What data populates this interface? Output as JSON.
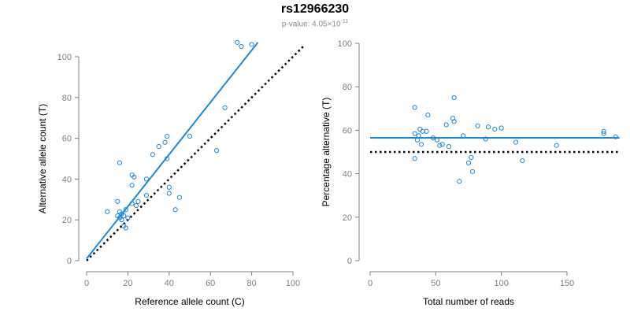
{
  "header": {
    "title": "rs12966230",
    "subtitle_prefix": "p-value: 4.05×10",
    "subtitle_exponent": "-11"
  },
  "colors": {
    "points": "#1f88d6",
    "fit_line": "#1f88d6",
    "reference_line": "#000000",
    "axis": "#7f7f7f",
    "tick_text": "#7f7f7f",
    "label_text": "#000000"
  },
  "chart_data": [
    {
      "type": "scatter",
      "title": "",
      "xlabel": "Reference allele count (C)",
      "ylabel": "Alternative allele count (T)",
      "xlim": [
        0,
        100
      ],
      "ylim": [
        0,
        100
      ],
      "x_ticks": [
        0,
        20,
        40,
        60,
        80,
        100
      ],
      "y_ticks": [
        0,
        20,
        40,
        60,
        80,
        100
      ],
      "grid": false,
      "points": [
        {
          "x": 73,
          "y": 107
        },
        {
          "x": 75,
          "y": 105
        },
        {
          "x": 80,
          "y": 106
        },
        {
          "x": 67,
          "y": 75
        },
        {
          "x": 39,
          "y": 61
        },
        {
          "x": 50,
          "y": 61
        },
        {
          "x": 38,
          "y": 58
        },
        {
          "x": 35,
          "y": 56
        },
        {
          "x": 32,
          "y": 52
        },
        {
          "x": 63,
          "y": 54
        },
        {
          "x": 39,
          "y": 50
        },
        {
          "x": 16,
          "y": 48
        },
        {
          "x": 22,
          "y": 42
        },
        {
          "x": 23,
          "y": 41
        },
        {
          "x": 29,
          "y": 40
        },
        {
          "x": 22,
          "y": 37
        },
        {
          "x": 40,
          "y": 36
        },
        {
          "x": 40,
          "y": 33
        },
        {
          "x": 29,
          "y": 32
        },
        {
          "x": 45,
          "y": 31
        },
        {
          "x": 15,
          "y": 29
        },
        {
          "x": 25,
          "y": 29
        },
        {
          "x": 22,
          "y": 28
        },
        {
          "x": 24,
          "y": 27
        },
        {
          "x": 10,
          "y": 24
        },
        {
          "x": 16,
          "y": 24
        },
        {
          "x": 19,
          "y": 25
        },
        {
          "x": 17,
          "y": 23
        },
        {
          "x": 15,
          "y": 22
        },
        {
          "x": 18,
          "y": 22
        },
        {
          "x": 43,
          "y": 25
        },
        {
          "x": 16,
          "y": 21
        },
        {
          "x": 20,
          "y": 21
        },
        {
          "x": 17,
          "y": 20
        },
        {
          "x": 18,
          "y": 17
        },
        {
          "x": 19,
          "y": 16
        }
      ],
      "fit_line": {
        "x": [
          0,
          83
        ],
        "y": [
          1,
          107
        ]
      },
      "reference_line": {
        "x": [
          0,
          105
        ],
        "y": [
          0,
          105
        ]
      }
    },
    {
      "type": "scatter",
      "title": "",
      "xlabel": "Total number of reads",
      "ylabel": "Percentage alternative (T)",
      "xlim": [
        0,
        180
      ],
      "ylim": [
        0,
        100
      ],
      "x_ticks": [
        0,
        50,
        100,
        150
      ],
      "y_ticks": [
        0,
        20,
        40,
        60,
        80,
        100
      ],
      "grid": false,
      "points": [
        {
          "x": 34,
          "y": 70.5
        },
        {
          "x": 64,
          "y": 75
        },
        {
          "x": 44,
          "y": 67
        },
        {
          "x": 63,
          "y": 65.5
        },
        {
          "x": 64,
          "y": 64
        },
        {
          "x": 58,
          "y": 62.5
        },
        {
          "x": 82,
          "y": 62
        },
        {
          "x": 90,
          "y": 61.5
        },
        {
          "x": 95,
          "y": 60.5
        },
        {
          "x": 100,
          "y": 61
        },
        {
          "x": 38,
          "y": 60.5
        },
        {
          "x": 40,
          "y": 59.5
        },
        {
          "x": 43,
          "y": 59.5
        },
        {
          "x": 34,
          "y": 58.5
        },
        {
          "x": 37,
          "y": 57.5
        },
        {
          "x": 36,
          "y": 55.5
        },
        {
          "x": 48,
          "y": 56.5
        },
        {
          "x": 51,
          "y": 55.5
        },
        {
          "x": 71,
          "y": 57.5
        },
        {
          "x": 88,
          "y": 56
        },
        {
          "x": 111,
          "y": 54.5
        },
        {
          "x": 53,
          "y": 53
        },
        {
          "x": 39,
          "y": 53.5
        },
        {
          "x": 55,
          "y": 53.5
        },
        {
          "x": 60,
          "y": 52.5
        },
        {
          "x": 142,
          "y": 53
        },
        {
          "x": 77,
          "y": 47.5
        },
        {
          "x": 75,
          "y": 45
        },
        {
          "x": 34,
          "y": 47
        },
        {
          "x": 116,
          "y": 46
        },
        {
          "x": 78,
          "y": 41
        },
        {
          "x": 68,
          "y": 36.5
        },
        {
          "x": 178,
          "y": 59.5
        },
        {
          "x": 178,
          "y": 58.5
        },
        {
          "x": 187,
          "y": 57
        }
      ],
      "fit_line": {
        "x": [
          0,
          190
        ],
        "y": [
          56.5,
          56.5
        ]
      },
      "reference_line": {
        "x": [
          0,
          190
        ],
        "y": [
          50,
          50
        ]
      }
    }
  ]
}
